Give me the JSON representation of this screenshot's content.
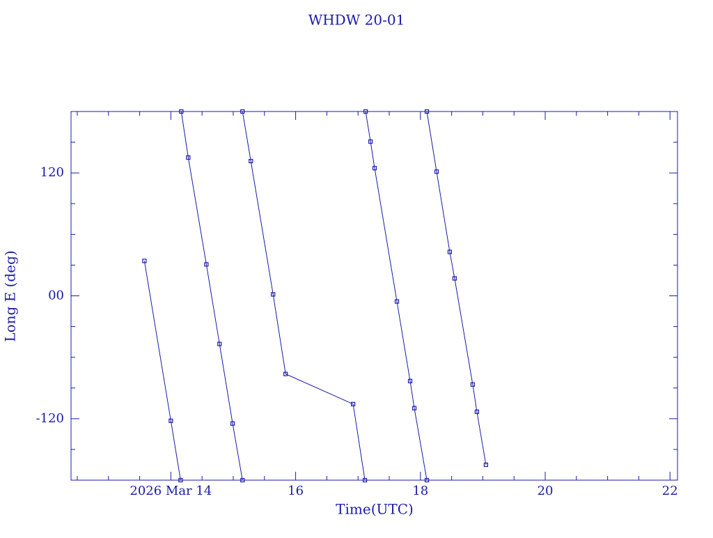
{
  "chart_data": {
    "type": "line",
    "title": "WHDW 20-01",
    "x_label": "Time(UTC)",
    "y_label": "Long E (deg)",
    "color": "#1a1aa8",
    "x": [
      13.576,
      14.0,
      14.156,
      null,
      14.167,
      14.279,
      14.569,
      14.78,
      14.99,
      15.148,
      null,
      15.148,
      15.282,
      15.639,
      15.839,
      16.921,
      17.11,
      null,
      17.122,
      17.2,
      17.266,
      17.623,
      17.835,
      17.902,
      18.103,
      null,
      18.103,
      18.259,
      18.47,
      18.548,
      18.838,
      18.905,
      19.05
    ],
    "values": [
      34.1,
      -122,
      -180,
      null,
      180,
      135,
      30.7,
      -47,
      -124.7,
      -180,
      null,
      180,
      131.6,
      1.4,
      -76.3,
      -105.7,
      -180,
      null,
      180,
      150.6,
      124.7,
      -5.5,
      -83.2,
      -109.7,
      -180,
      null,
      180,
      121.3,
      42.9,
      17,
      -86.6,
      -113.2,
      -165
    ],
    "xlim": [
      12.4,
      22.12
    ],
    "ylim": [
      -180,
      180
    ],
    "xticks": [
      {
        "value": 14,
        "label": "2026 Mar 14"
      },
      16,
      18,
      20,
      22
    ],
    "yticks": [
      -120,
      {
        "value": 0,
        "label": "00"
      },
      120
    ],
    "x_minor_ticks": [
      12.5,
      13,
      13.5,
      14.5,
      15,
      15.5,
      16.5,
      17,
      17.5,
      18.5,
      19,
      19.5,
      20.5,
      21,
      21.5
    ],
    "y_minor_ticks": [
      -150,
      -90,
      -60,
      -30,
      30,
      60,
      90,
      150
    ]
  }
}
